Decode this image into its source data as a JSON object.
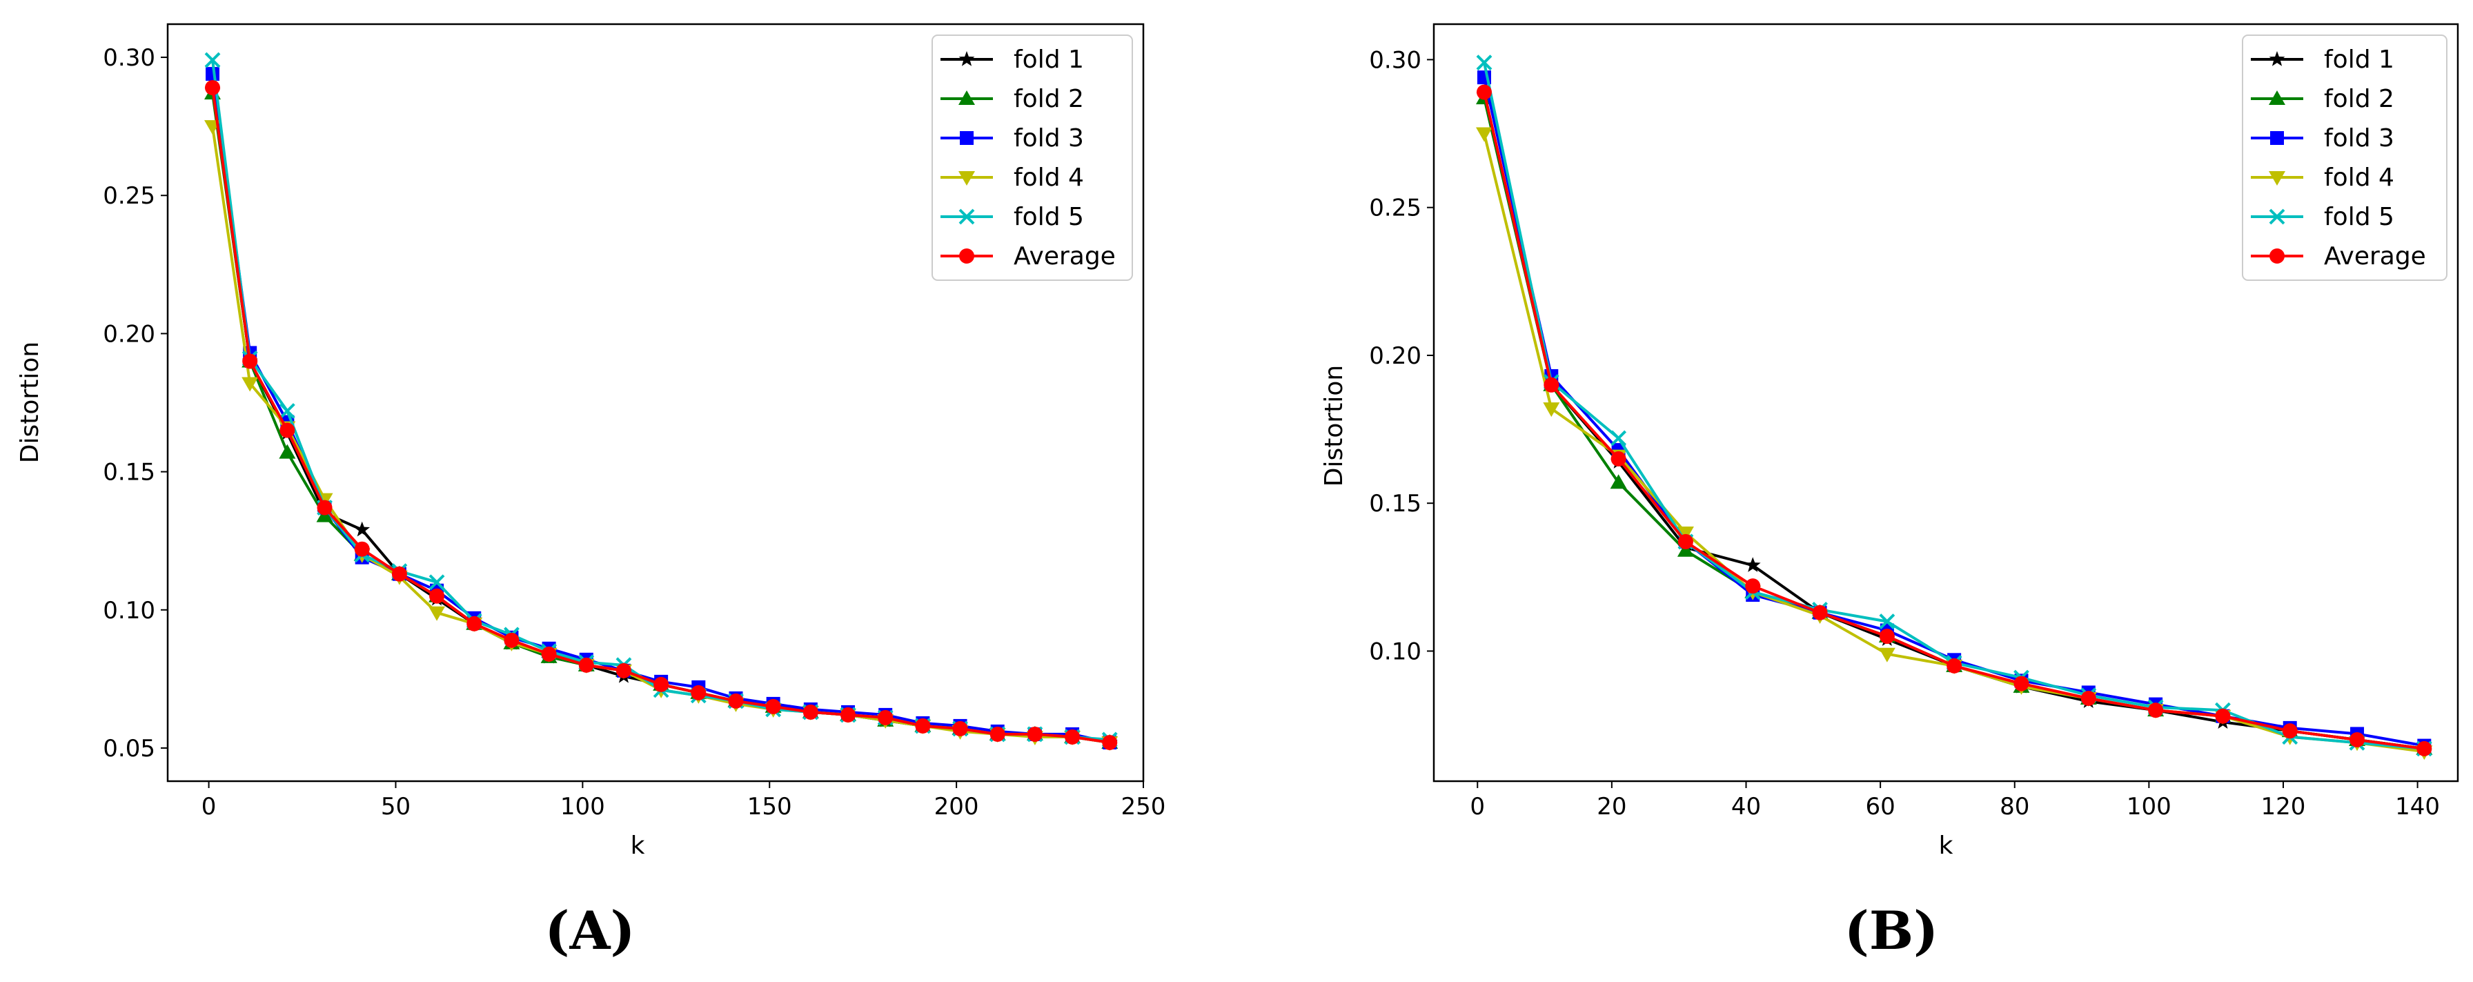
{
  "colors": {
    "fold1": "#000000",
    "fold2": "#008000",
    "fold3": "#0000ff",
    "fold4": "#bfbf00",
    "fold5": "#00bfbf",
    "average": "#ff0000"
  },
  "chart_data": [
    {
      "type": "line",
      "panel": "A",
      "caption": "(A)",
      "title": "",
      "xlabel": "k",
      "ylabel": "Distortion",
      "xlim": [
        -11,
        250
      ],
      "ylim": [
        0.038,
        0.312
      ],
      "xticks": [
        0,
        50,
        100,
        150,
        200,
        250
      ],
      "xtick_labels": [
        "0",
        "50",
        "100",
        "150",
        "200",
        "250"
      ],
      "yticks": [
        0.05,
        0.1,
        0.15,
        0.2,
        0.25,
        0.3
      ],
      "ytick_labels": [
        "0.05",
        "0.10",
        "0.15",
        "0.20",
        "0.25",
        "0.30"
      ],
      "grid": false,
      "legend_position": "top-right",
      "x": [
        1,
        11,
        21,
        31,
        41,
        51,
        61,
        71,
        81,
        91,
        101,
        111,
        121,
        131,
        141,
        151,
        161,
        171,
        181,
        191,
        201,
        211,
        221,
        231,
        241
      ],
      "series": [
        {
          "name": "fold 1",
          "color_key": "fold1",
          "marker": "star",
          "values": [
            0.288,
            0.19,
            0.164,
            0.135,
            0.129,
            0.113,
            0.104,
            0.095,
            0.088,
            0.083,
            0.08,
            0.076,
            0.073,
            0.07,
            0.067,
            0.065,
            0.063,
            0.062,
            0.06,
            0.058,
            0.057,
            0.055,
            0.055,
            0.054,
            0.052
          ]
        },
        {
          "name": "fold 2",
          "color_key": "fold2",
          "marker": "triangle-up",
          "values": [
            0.287,
            0.19,
            0.157,
            0.134,
            0.12,
            0.113,
            0.105,
            0.095,
            0.088,
            0.083,
            0.08,
            0.078,
            0.073,
            0.07,
            0.067,
            0.065,
            0.063,
            0.062,
            0.06,
            0.058,
            0.057,
            0.055,
            0.055,
            0.054,
            0.052
          ]
        },
        {
          "name": "fold 3",
          "color_key": "fold3",
          "marker": "square",
          "values": [
            0.294,
            0.193,
            0.168,
            0.137,
            0.119,
            0.113,
            0.107,
            0.097,
            0.09,
            0.086,
            0.082,
            0.078,
            0.074,
            0.072,
            0.068,
            0.066,
            0.064,
            0.063,
            0.062,
            0.059,
            0.058,
            0.056,
            0.055,
            0.055,
            0.052
          ]
        },
        {
          "name": "fold 4",
          "color_key": "fold4",
          "marker": "triangle-down",
          "values": [
            0.275,
            0.182,
            0.166,
            0.14,
            0.12,
            0.112,
            0.099,
            0.095,
            0.088,
            0.084,
            0.08,
            0.078,
            0.071,
            0.069,
            0.066,
            0.064,
            0.063,
            0.062,
            0.06,
            0.058,
            0.056,
            0.055,
            0.054,
            0.054,
            0.052
          ]
        },
        {
          "name": "fold 5",
          "color_key": "fold5",
          "marker": "x",
          "values": [
            0.299,
            0.191,
            0.172,
            0.137,
            0.12,
            0.114,
            0.11,
            0.096,
            0.091,
            0.085,
            0.081,
            0.08,
            0.071,
            0.069,
            0.067,
            0.064,
            0.063,
            0.062,
            0.061,
            0.058,
            0.057,
            0.055,
            0.055,
            0.054,
            0.053
          ]
        },
        {
          "name": "Average",
          "color_key": "average",
          "marker": "circle",
          "values": [
            0.289,
            0.19,
            0.165,
            0.137,
            0.122,
            0.113,
            0.105,
            0.095,
            0.089,
            0.084,
            0.08,
            0.078,
            0.073,
            0.07,
            0.067,
            0.065,
            0.063,
            0.062,
            0.061,
            0.058,
            0.057,
            0.055,
            0.055,
            0.054,
            0.052
          ]
        }
      ]
    },
    {
      "type": "line",
      "panel": "B",
      "caption": "(B)",
      "title": "",
      "xlabel": "k",
      "ylabel": "Distortion",
      "xlim": [
        -6.5,
        146
      ],
      "ylim": [
        0.056,
        0.312
      ],
      "xticks": [
        0,
        20,
        40,
        60,
        80,
        100,
        120,
        140
      ],
      "xtick_labels": [
        "0",
        "20",
        "40",
        "60",
        "80",
        "100",
        "120",
        "140"
      ],
      "yticks": [
        0.1,
        0.15,
        0.2,
        0.25,
        0.3
      ],
      "ytick_labels": [
        "0.10",
        "0.15",
        "0.20",
        "0.25",
        "0.30"
      ],
      "grid": false,
      "legend_position": "top-right",
      "x": [
        1,
        11,
        21,
        31,
        41,
        51,
        61,
        71,
        81,
        91,
        101,
        111,
        121,
        131,
        141
      ],
      "series": [
        {
          "name": "fold 1",
          "color_key": "fold1",
          "marker": "star",
          "values": [
            0.288,
            0.19,
            0.164,
            0.135,
            0.129,
            0.113,
            0.104,
            0.095,
            0.088,
            0.083,
            0.08,
            0.076,
            0.073,
            0.07,
            0.067
          ]
        },
        {
          "name": "fold 2",
          "color_key": "fold2",
          "marker": "triangle-up",
          "values": [
            0.287,
            0.19,
            0.157,
            0.134,
            0.12,
            0.113,
            0.105,
            0.095,
            0.088,
            0.084,
            0.08,
            0.078,
            0.073,
            0.07,
            0.067
          ]
        },
        {
          "name": "fold 3",
          "color_key": "fold3",
          "marker": "square",
          "values": [
            0.294,
            0.193,
            0.168,
            0.137,
            0.119,
            0.113,
            0.107,
            0.097,
            0.09,
            0.086,
            0.082,
            0.078,
            0.074,
            0.072,
            0.068
          ]
        },
        {
          "name": "fold 4",
          "color_key": "fold4",
          "marker": "triangle-down",
          "values": [
            0.275,
            0.182,
            0.166,
            0.14,
            0.12,
            0.112,
            0.099,
            0.095,
            0.088,
            0.084,
            0.08,
            0.078,
            0.071,
            0.069,
            0.066
          ]
        },
        {
          "name": "fold 5",
          "color_key": "fold5",
          "marker": "x",
          "values": [
            0.299,
            0.191,
            0.172,
            0.137,
            0.12,
            0.114,
            0.11,
            0.096,
            0.091,
            0.085,
            0.081,
            0.08,
            0.071,
            0.069,
            0.067
          ]
        },
        {
          "name": "Average",
          "color_key": "average",
          "marker": "circle",
          "values": [
            0.289,
            0.19,
            0.165,
            0.137,
            0.122,
            0.113,
            0.105,
            0.095,
            0.089,
            0.084,
            0.08,
            0.078,
            0.073,
            0.07,
            0.067
          ]
        }
      ]
    }
  ]
}
